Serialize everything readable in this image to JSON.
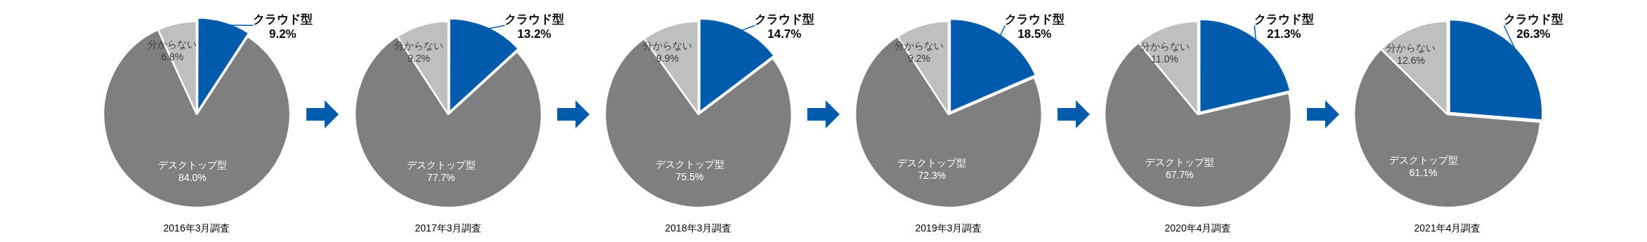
{
  "chart_data": [
    {
      "type": "pie",
      "title": "2016年3月調査",
      "categories": [
        "クラウド型",
        "デスクトップ型",
        "分からない"
      ],
      "values": [
        9.2,
        84.0,
        6.8
      ],
      "value_labels": [
        "9.2%",
        "84.0%",
        "6.8%"
      ],
      "colors": [
        "#005bac",
        "#7f7f7f",
        "#bfbfbf"
      ]
    },
    {
      "type": "pie",
      "title": "2017年3月調査",
      "categories": [
        "クラウド型",
        "デスクトップ型",
        "分からない"
      ],
      "values": [
        13.2,
        77.7,
        9.2
      ],
      "value_labels": [
        "13.2%",
        "77.7%",
        "9.2%"
      ],
      "colors": [
        "#005bac",
        "#7f7f7f",
        "#bfbfbf"
      ]
    },
    {
      "type": "pie",
      "title": "2018年3月調査",
      "categories": [
        "クラウド型",
        "デスクトップ型",
        "分からない"
      ],
      "values": [
        14.7,
        75.5,
        9.9
      ],
      "value_labels": [
        "14.7%",
        "75.5%",
        "9.9%"
      ],
      "colors": [
        "#005bac",
        "#7f7f7f",
        "#bfbfbf"
      ]
    },
    {
      "type": "pie",
      "title": "2019年3月調査",
      "categories": [
        "クラウド型",
        "デスクトップ型",
        "分からない"
      ],
      "values": [
        18.5,
        72.3,
        9.2
      ],
      "value_labels": [
        "18.5%",
        "72.3%",
        "9.2%"
      ],
      "colors": [
        "#005bac",
        "#7f7f7f",
        "#bfbfbf"
      ]
    },
    {
      "type": "pie",
      "title": "2020年4月調査",
      "categories": [
        "クラウド型",
        "デスクトップ型",
        "分からない"
      ],
      "values": [
        21.3,
        67.7,
        11.0
      ],
      "value_labels": [
        "21.3%",
        "67.7%",
        "11.0%"
      ],
      "colors": [
        "#005bac",
        "#7f7f7f",
        "#bfbfbf"
      ]
    },
    {
      "type": "pie",
      "title": "2021年4月調査",
      "categories": [
        "クラウド型",
        "デスクトップ型",
        "分からない"
      ],
      "values": [
        26.3,
        61.1,
        12.6
      ],
      "value_labels": [
        "26.3%",
        "61.1%",
        "12.6%"
      ],
      "colors": [
        "#005bac",
        "#7f7f7f",
        "#bfbfbf"
      ]
    }
  ]
}
